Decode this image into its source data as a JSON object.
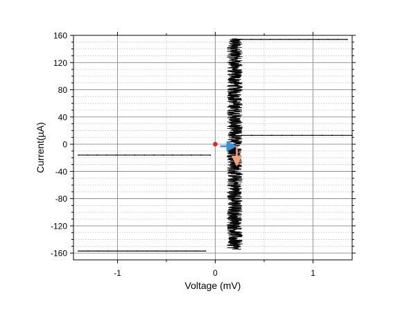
{
  "chart_data": {
    "type": "scatter",
    "title": "",
    "xlabel": "Voltage (mV)",
    "ylabel": "Current(µA)",
    "xlim": [
      -1.45,
      1.4
    ],
    "ylim": [
      -170,
      160
    ],
    "x_ticks": [
      {
        "value": -1,
        "label": "-1"
      },
      {
        "value": 0,
        "label": "0"
      },
      {
        "value": 1,
        "label": "1"
      }
    ],
    "y_ticks": [
      {
        "value": -160,
        "label": "-160"
      },
      {
        "value": -120,
        "label": "-120"
      },
      {
        "value": -80,
        "label": "-80"
      },
      {
        "value": -40,
        "label": "-40"
      },
      {
        "value": 0,
        "label": "0"
      },
      {
        "value": 40,
        "label": "40"
      },
      {
        "value": 80,
        "label": "80"
      },
      {
        "value": 120,
        "label": "120"
      },
      {
        "value": 160,
        "label": "160"
      }
    ],
    "grid": true,
    "colors": {
      "trace": "#000000",
      "start_point": "#e8231c",
      "blue_arrow": "#3d8fd6",
      "orange_arrow": "#f0a07a",
      "grid_major": "#888888",
      "grid_minor": "#bbbbbb"
    },
    "series": [
      {
        "segments": [
          {
            "x": [
              -1.4,
              -0.05
            ],
            "y": [
              -16,
              -16
            ]
          },
          {
            "x": [
              -1.4,
              -0.1
            ],
            "y": [
              -157,
              -157
            ]
          },
          {
            "x": [
              0.27,
              1.35
            ],
            "y": [
              154,
              154
            ]
          },
          {
            "x": [
              0.27,
              1.4
            ],
            "y": [
              13,
              13
            ]
          }
        ],
        "noise_band": {
          "x_center": 0.2,
          "x_halfwidth": 0.08,
          "y_min": -155,
          "y_max": 155
        }
      }
    ],
    "annotations": [
      {
        "type": "point",
        "x": 0,
        "y": 0
      },
      {
        "type": "arrow",
        "from": [
          0.05,
          -3
        ],
        "to": [
          0.17,
          -3
        ]
      },
      {
        "type": "arrow",
        "from": [
          0.22,
          -3
        ],
        "to": [
          0.22,
          -25
        ]
      }
    ]
  }
}
